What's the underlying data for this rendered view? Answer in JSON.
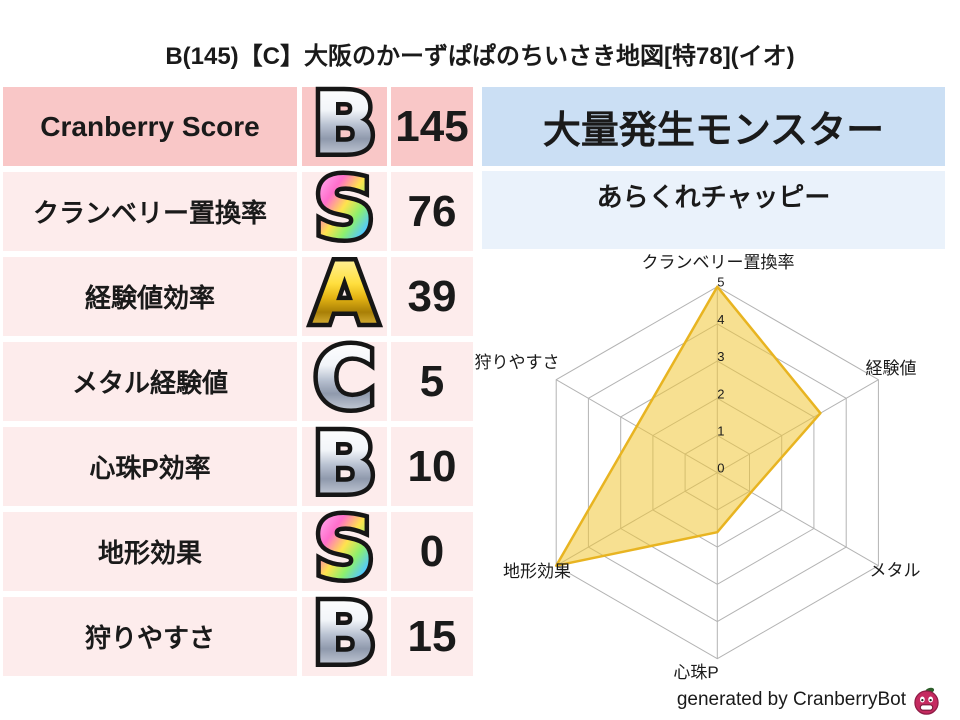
{
  "title": "B(145)【C】大阪のかーずぱぱのちいさき地図[特78](イオ)",
  "stats_table": {
    "rows": [
      {
        "label": "Cranberry Score",
        "grade": "B",
        "value": "145"
      },
      {
        "label": "クランベリー置換率",
        "grade": "S",
        "value": "76"
      },
      {
        "label": "経験値効率",
        "grade": "A",
        "value": "39"
      },
      {
        "label": "メタル経験値",
        "grade": "C",
        "value": "5"
      },
      {
        "label": "心珠P効率",
        "grade": "B",
        "value": "10"
      },
      {
        "label": "地形効果",
        "grade": "S",
        "value": "0"
      },
      {
        "label": "狩りやすさ",
        "grade": "B",
        "value": "15"
      }
    ]
  },
  "monster_panel": {
    "header": "大量発生モンスター",
    "monster_name": "あらくれチャッピー"
  },
  "chart_data": {
    "type": "radar",
    "axes": [
      "クランベリー置換率",
      "経験値",
      "メタル",
      "心珠P",
      "地形効果",
      "狩りやすさ"
    ],
    "values": [
      5,
      3.2,
      1.05,
      1.6,
      5,
      2.5
    ],
    "ticks": [
      0,
      1,
      2,
      3,
      4,
      5
    ],
    "ylim": [
      0,
      5
    ],
    "grid": true,
    "fill_color": "rgba(240,198,54,0.55)",
    "line_color": "#e8b421",
    "grid_color": "#b3b3b3"
  },
  "footer": {
    "credit": "generated by CranberryBot",
    "logo_icon": "cranberry-icon"
  },
  "colors": {
    "score_header_bg": "#f9c7c7",
    "score_row_bg": "#fdecec",
    "monster_header_bg": "#cbdff4",
    "monster_row_bg": "#eaf2fb",
    "grade_gold": "#ffd93b",
    "grade_silver": "#b7c0d0",
    "radar_line": "#e8b421"
  }
}
